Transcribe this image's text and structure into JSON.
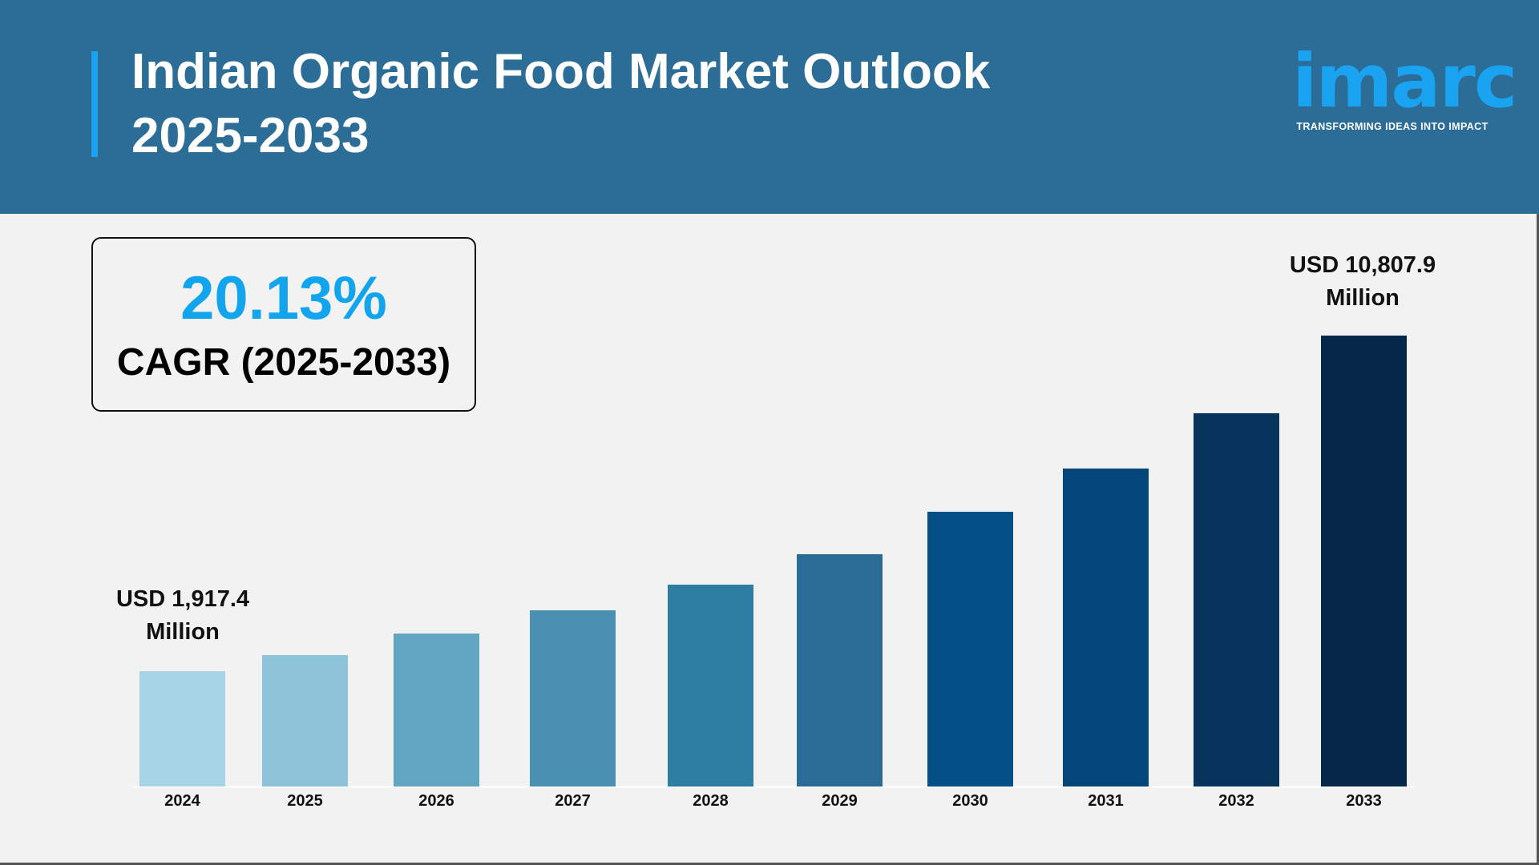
{
  "header": {
    "title_line1": "Indian Organic Food Market Outlook",
    "title_line2": "2025-2033",
    "background_color": "#2c6d97",
    "accent_color": "#1aa3f0"
  },
  "logo": {
    "wordmark": "imarc",
    "tagline": "TRANSFORMING IDEAS INTO IMPACT"
  },
  "cagr": {
    "value": "20.13%",
    "label": "CAGR (2025-2033)"
  },
  "chart_data": {
    "type": "bar",
    "title": "",
    "xlabel": "",
    "ylabel": "",
    "grid": false,
    "categories": [
      "2024",
      "2025",
      "2026",
      "2027",
      "2028",
      "2029",
      "2030",
      "2031",
      "2032",
      "2033"
    ],
    "values": [
      1917.4,
      2342,
      2915,
      3530,
      4210,
      5016,
      6141,
      7286,
      8751,
      10807.9
    ],
    "colors": [
      "#a8d5e5",
      "#8cc3d8",
      "#62a5c2",
      "#4990b2",
      "#2e7ea3",
      "#2b6c96",
      "#055087",
      "#03477a",
      "#06345d",
      "#05284a"
    ],
    "annotations": {
      "first_line1": "USD 1,917.4",
      "first_line2": "Million",
      "last_line1": "USD 10,807.9",
      "last_line2": "Million"
    }
  }
}
